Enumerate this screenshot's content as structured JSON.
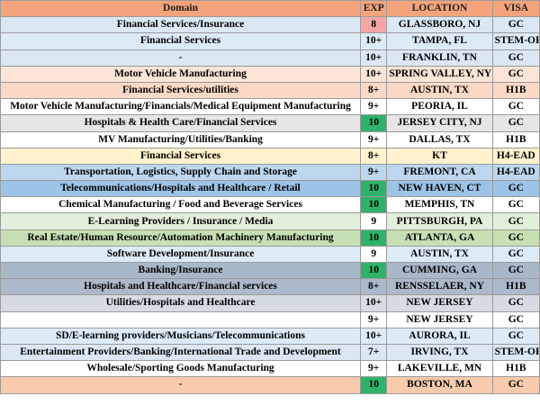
{
  "headers": {
    "domain": "Domain",
    "exp": "EXP",
    "location": "LOCATION",
    "visa": "VISA"
  },
  "rows": [
    {
      "domain": "Financial Services/Insurance",
      "exp": "8",
      "location": "GLASSBORO, NJ",
      "visa": "GC",
      "bg": "#dbe8f4",
      "exp_bg": "#f5a7a7"
    },
    {
      "domain": "Financial Services",
      "exp": "10+",
      "location": "TAMPA, FL",
      "visa": "STEM-OPT",
      "bg": "#ddebf7",
      "exp_bg": "#ddebf7"
    },
    {
      "domain": "-",
      "exp": "10+",
      "location": "FRANKLIN, TN",
      "visa": "GC",
      "bg": "#dbe8f4",
      "exp_bg": "#dbe8f4"
    },
    {
      "domain": "Motor Vehicle Manufacturing",
      "exp": "10+",
      "location": "SPRING VALLEY, NY",
      "visa": "GC",
      "bg": "#fce4d6",
      "exp_bg": "#fce4d6"
    },
    {
      "domain": "Financial Services/utilities",
      "exp": "8+",
      "location": "AUSTIN, TX",
      "visa": "H1B",
      "bg": "#fbd9c6",
      "exp_bg": "#fbd9c6"
    },
    {
      "domain": "Motor Vehicle Manufacturing/Financials/Medical Equipment Manufacturing",
      "exp": "9+",
      "location": "PEORIA, IL",
      "visa": "GC",
      "bg": "#ffffff",
      "exp_bg": "#ffffff"
    },
    {
      "domain": "Hospitals & Health Care/Financial Services",
      "exp": "10",
      "location": "JERSEY CITY, NJ",
      "visa": "GC",
      "bg": "#e7e6e6",
      "exp_bg": "#2fb36b"
    },
    {
      "domain": "MV Manufacturing/Utilities/Banking",
      "exp": "9+",
      "location": "DALLAS, TX",
      "visa": "H1B",
      "bg": "#ffffff",
      "exp_bg": "#ffffff"
    },
    {
      "domain": "Financial Services",
      "exp": "8+",
      "location": "KT",
      "visa": "H4-EAD",
      "bg": "#fff2cc",
      "exp_bg": "#fff2cc"
    },
    {
      "domain": "Transportation, Logistics, Supply Chain and Storage",
      "exp": "9+",
      "location": "FREMONT, CA",
      "visa": "H4-EAD",
      "bg": "#bdd7ee",
      "exp_bg": "#bdd7ee"
    },
    {
      "domain": "Telecommunications/Hospitals and Healthcare / Retail",
      "exp": "10",
      "location": "NEW HAVEN, CT",
      "visa": "GC",
      "bg": "#9dc3e6",
      "exp_bg": "#2fb36b"
    },
    {
      "domain": "Chemical Manufacturing / Food and Beverage Services",
      "exp": "10",
      "location": "MEMPHIS, TN",
      "visa": "GC",
      "bg": "#ffffff",
      "exp_bg": "#2fb36b"
    },
    {
      "domain": "E-Learning Providers / Insurance / Media",
      "exp": "9",
      "location": "PITTSBURGH, PA",
      "visa": "GC",
      "bg": "#e2efda",
      "exp_bg": "#ffffff"
    },
    {
      "domain": "Real Estate/Human Resource/Automation Machinery Manufacturing",
      "exp": "10",
      "location": "ATLANTA, GA",
      "visa": "GC",
      "bg": "#c6e0b4",
      "exp_bg": "#2fb36b"
    },
    {
      "domain": "Software Development/Insurance",
      "exp": "9",
      "location": "AUSTIN, TX",
      "visa": "GC",
      "bg": "#ddebf7",
      "exp_bg": "#ffffff"
    },
    {
      "domain": "Banking/Insurance",
      "exp": "10",
      "location": "CUMMING, GA",
      "visa": "GC",
      "bg": "#a9b8c9",
      "exp_bg": "#2fb36b"
    },
    {
      "domain": "Hospitals and Healthcare/Financial services",
      "exp": "8+",
      "location": "RENSSELAER, NY",
      "visa": "H1B",
      "bg": "#acb9ca",
      "exp_bg": "#acb9ca"
    },
    {
      "domain": "Utilities/Hospitals and Healthcare",
      "exp": "10+",
      "location": "NEW JERSEY",
      "visa": "GC",
      "bg": "#d6dce4",
      "exp_bg": "#d6dce4"
    },
    {
      "domain": "",
      "exp": "9+",
      "location": "NEW JERSEY",
      "visa": "GC",
      "bg": "#ffffff",
      "exp_bg": "#ffffff"
    },
    {
      "domain": "SD/E-learning providers/Musicians/Telecommunications",
      "exp": "10+",
      "location": "AURORA, IL",
      "visa": "GC",
      "bg": "#ddebf7",
      "exp_bg": "#ddebf7"
    },
    {
      "domain": "Entertainment Providers/Banking/International Trade and Development",
      "exp": "7+",
      "location": "IRVING, TX",
      "visa": "STEM-OPT",
      "bg": "#dbe8f4",
      "exp_bg": "#dbe8f4"
    },
    {
      "domain": "Wholesale/Sporting Goods Manufacturing",
      "exp": "9+",
      "location": "LAKEVILLE, MN",
      "visa": "H1B",
      "bg": "#ffffff",
      "exp_bg": "#ffffff"
    },
    {
      "domain": "-",
      "exp": "10",
      "location": "BOSTON, MA",
      "visa": "GC",
      "bg": "#f8cbad",
      "exp_bg": "#2fb36b"
    }
  ],
  "colors": {
    "header_bg": "#f4a47c",
    "exp_highlight_green": "#2fb36b",
    "exp_highlight_red": "#f5a7a7"
  }
}
